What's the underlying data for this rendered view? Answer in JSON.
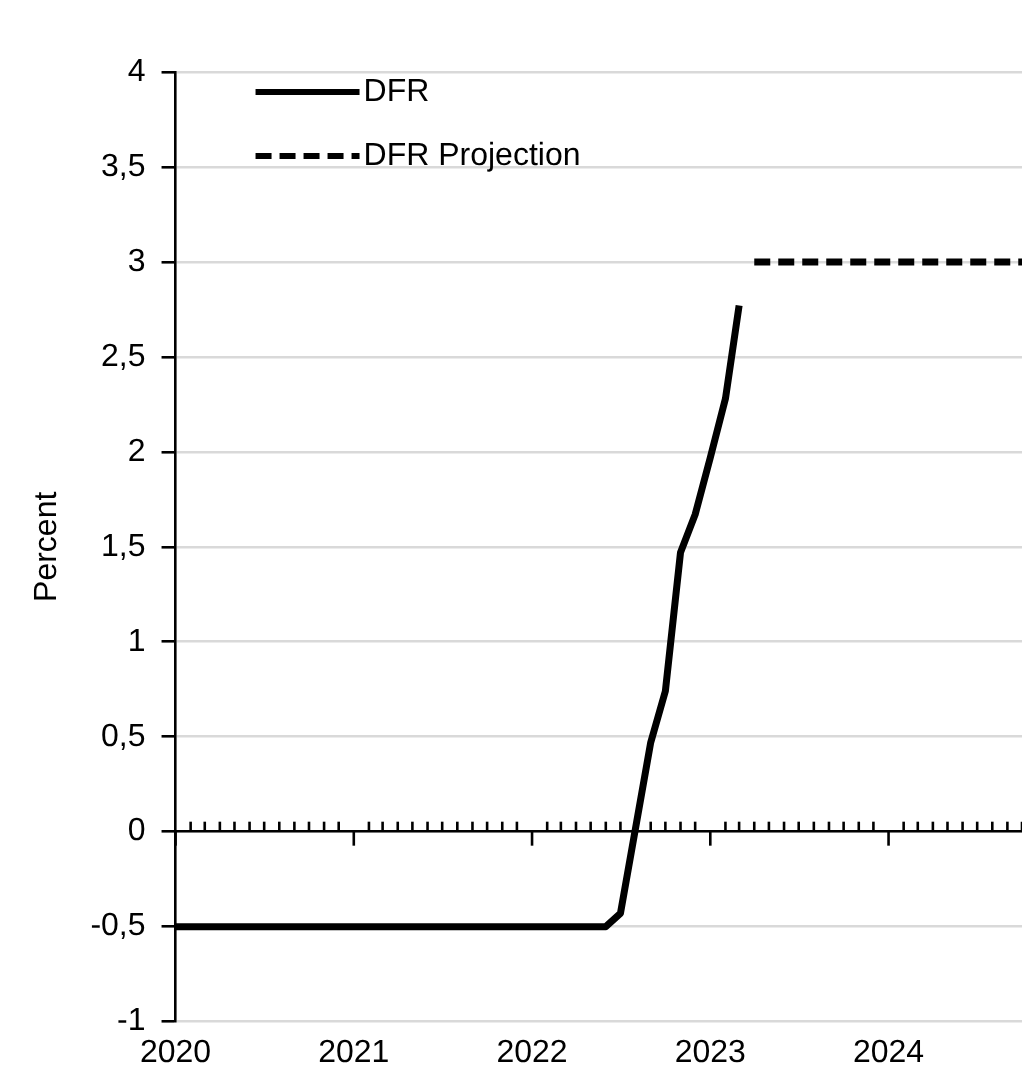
{
  "chart_data": {
    "type": "line",
    "ylabel": "Percent",
    "series": [
      {
        "name": "DFR",
        "color": "#000000",
        "line_style": "solid",
        "x": [
          "2020-01",
          "2022-06",
          "2022-07",
          "2022-09",
          "2022-10",
          "2022-11",
          "2022-12",
          "2023-01",
          "2023-02",
          "2023-03"
        ],
        "values": [
          -0.5,
          -0.5,
          -0.43,
          0.47,
          0.74,
          1.47,
          1.67,
          1.97,
          2.28,
          2.77
        ]
      },
      {
        "name": "DFR Projection",
        "color": "#000000",
        "line_style": "dashed",
        "x": [
          "2023-04",
          "2024-10"
        ],
        "values": [
          3,
          3
        ]
      }
    ],
    "xlim": [
      "2020-01",
      "2024-10"
    ],
    "xticks": [
      {
        "value": "2020",
        "label": "2020"
      },
      {
        "value": "2021",
        "label": "2021"
      },
      {
        "value": "2022",
        "label": "2022"
      },
      {
        "value": "2023",
        "label": "2023"
      },
      {
        "value": "2024",
        "label": "2024"
      },
      {
        "value": "2020-02",
        "label": null
      },
      {
        "value": "2020-03",
        "label": null
      },
      {
        "value": "2020-04",
        "label": null
      },
      {
        "value": "2020-05",
        "label": null
      },
      {
        "value": "2020-06",
        "label": null
      },
      {
        "value": "2020-07",
        "label": null
      },
      {
        "value": "2020-08",
        "label": null
      },
      {
        "value": "2020-09",
        "label": null
      },
      {
        "value": "2020-10",
        "label": null
      },
      {
        "value": "2020-11",
        "label": null
      },
      {
        "value": "2020-12",
        "label": null
      },
      {
        "value": "2021-02",
        "label": null
      },
      {
        "value": "2021-03",
        "label": null
      },
      {
        "value": "2021-04",
        "label": null
      },
      {
        "value": "2021-05",
        "label": null
      },
      {
        "value": "2021-06",
        "label": null
      },
      {
        "value": "2021-07",
        "label": null
      },
      {
        "value": "2021-08",
        "label": null
      },
      {
        "value": "2021-09",
        "label": null
      },
      {
        "value": "2021-10",
        "label": null
      },
      {
        "value": "2021-11",
        "label": null
      },
      {
        "value": "2021-12",
        "label": null
      },
      {
        "value": "2022-02",
        "label": null
      },
      {
        "value": "2022-03",
        "label": null
      },
      {
        "value": "2022-04",
        "label": null
      },
      {
        "value": "2022-05",
        "label": null
      },
      {
        "value": "2022-06",
        "label": null
      },
      {
        "value": "2022-07",
        "label": null
      },
      {
        "value": "2022-08",
        "label": null
      },
      {
        "value": "2022-09",
        "label": null
      },
      {
        "value": "2022-10",
        "label": null
      },
      {
        "value": "2022-11",
        "label": null
      },
      {
        "value": "2022-12",
        "label": null
      },
      {
        "value": "2023-02",
        "label": null
      },
      {
        "value": "2023-03",
        "label": null
      },
      {
        "value": "2023-04",
        "label": null
      },
      {
        "value": "2023-05",
        "label": null
      },
      {
        "value": "2023-06",
        "label": null
      },
      {
        "value": "2023-07",
        "label": null
      },
      {
        "value": "2023-08",
        "label": null
      },
      {
        "value": "2023-09",
        "label": null
      },
      {
        "value": "2023-10",
        "label": null
      },
      {
        "value": "2023-11",
        "label": null
      },
      {
        "value": "2023-12",
        "label": null
      },
      {
        "value": "2024-02",
        "label": null
      },
      {
        "value": "2024-03",
        "label": null
      },
      {
        "value": "2024-04",
        "label": null
      },
      {
        "value": "2024-05",
        "label": null
      },
      {
        "value": "2024-06",
        "label": null
      },
      {
        "value": "2024-07",
        "label": null
      },
      {
        "value": "2024-08",
        "label": null
      },
      {
        "value": "2024-09",
        "label": null
      },
      {
        "value": "2024-10",
        "label": null
      }
    ],
    "ylim": [
      -1,
      4
    ],
    "yticks": [
      {
        "value": -1,
        "label": "-1"
      },
      {
        "value": -0.5,
        "label": "-0,5"
      },
      {
        "value": 0,
        "label": "0"
      },
      {
        "value": 0.5,
        "label": "0,5"
      },
      {
        "value": 1,
        "label": "1"
      },
      {
        "value": 1.5,
        "label": "1,5"
      },
      {
        "value": 2,
        "label": "2"
      },
      {
        "value": 2.5,
        "label": "2,5"
      },
      {
        "value": 3,
        "label": "3"
      },
      {
        "value": 3.5,
        "label": "3,5"
      },
      {
        "value": 4,
        "label": "4"
      }
    ],
    "grid": "y",
    "legend": "top left",
    "marker": "none"
  }
}
